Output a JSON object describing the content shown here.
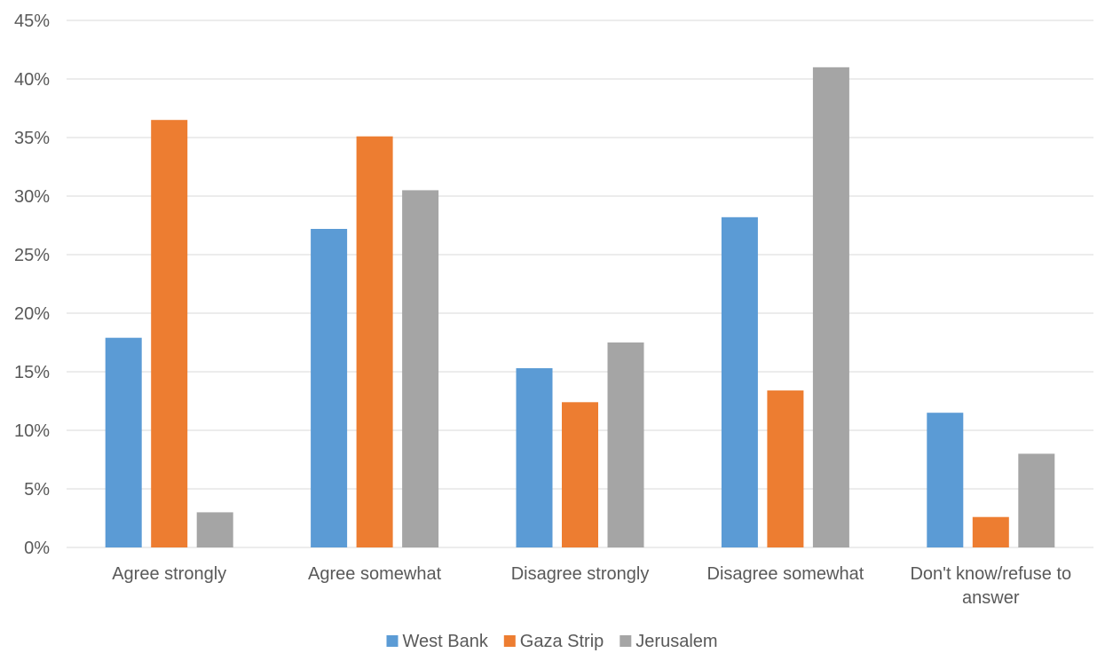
{
  "chart_data": {
    "type": "bar",
    "categories": [
      "Agree strongly",
      "Agree somewhat",
      "Disagree strongly",
      "Disagree somewhat",
      "Don't know/refuse to answer"
    ],
    "category_label_lines": [
      [
        "Agree strongly"
      ],
      [
        "Agree somewhat"
      ],
      [
        "Disagree strongly"
      ],
      [
        "Disagree somewhat"
      ],
      [
        "Don't know/refuse to",
        "answer"
      ]
    ],
    "series": [
      {
        "name": "West Bank",
        "color": "#5B9BD5",
        "values": [
          17.9,
          27.2,
          15.3,
          28.2,
          11.5
        ]
      },
      {
        "name": "Gaza Strip",
        "color": "#ED7D31",
        "values": [
          36.5,
          35.1,
          12.4,
          13.4,
          2.6
        ]
      },
      {
        "name": "Jerusalem",
        "color": "#A5A5A5",
        "values": [
          3.0,
          30.5,
          17.5,
          41.0,
          8.0
        ]
      }
    ],
    "ylim": [
      0,
      45
    ],
    "ytick_step": 5,
    "ytick_labels": [
      "0%",
      "5%",
      "10%",
      "15%",
      "20%",
      "25%",
      "30%",
      "35%",
      "40%",
      "45%"
    ],
    "grid": true,
    "legend_position": "bottom",
    "title": "",
    "xlabel": "",
    "ylabel": ""
  }
}
